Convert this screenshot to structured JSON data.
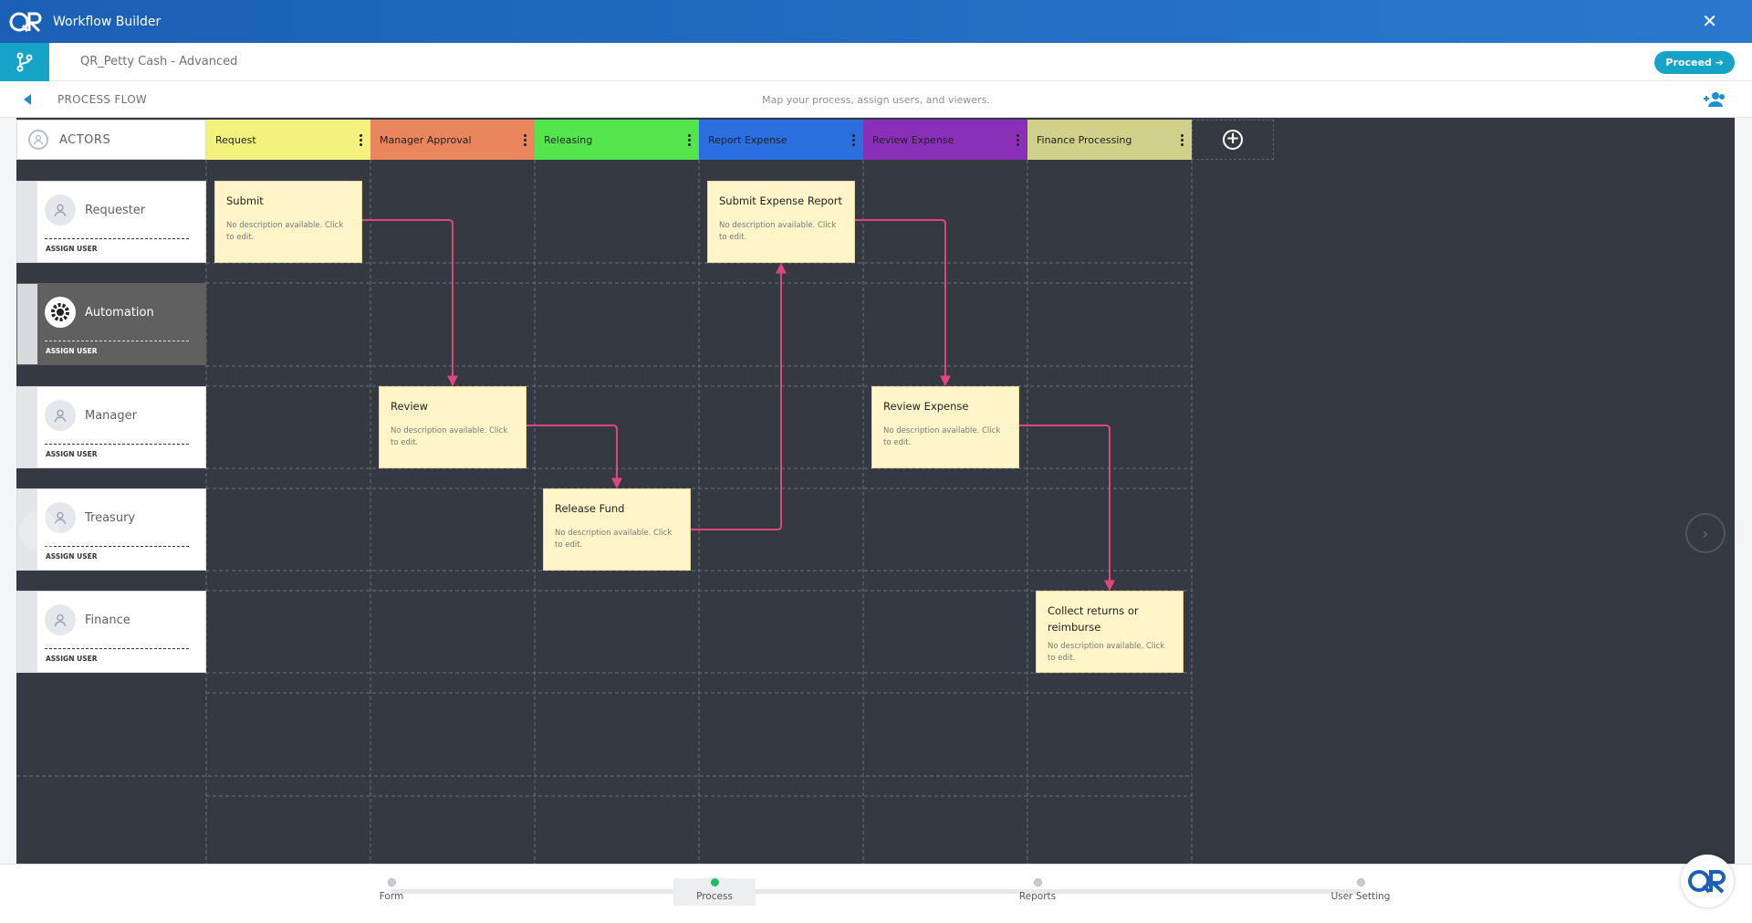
{
  "app": {
    "title": "Workflow Builder",
    "close_icon": "close-icon",
    "logo_icon": "qr-logo-icon"
  },
  "workflow": {
    "name": "QR_Petty Cash - Advanced",
    "proceed_label": "Proceed"
  },
  "flow_bar": {
    "label": "PROCESS FLOW",
    "hint": "Map your process, assign users, and viewers."
  },
  "board": {
    "actors_label": "ACTORS",
    "stages": [
      {
        "label": "Request",
        "color": "#f3f27e"
      },
      {
        "label": "Manager Approval",
        "color": "#ea865d"
      },
      {
        "label": "Releasing",
        "color": "#52e64c"
      },
      {
        "label": "Report Expense",
        "color": "#2a6ee0"
      },
      {
        "label": "Review Expense",
        "color": "#8a2fb7"
      },
      {
        "label": "Finance Processing",
        "color": "#d0d08b"
      }
    ],
    "actors": [
      {
        "name": "Requester",
        "assign": "ASSIGN USER"
      },
      {
        "name": "Automation",
        "assign": "ASSIGN USER"
      },
      {
        "name": "Manager",
        "assign": "ASSIGN USER"
      },
      {
        "name": "Treasury",
        "assign": "ASSIGN USER"
      },
      {
        "name": "Finance",
        "assign": "ASSIGN USER"
      }
    ],
    "tasks": [
      {
        "title": "Submit",
        "desc": "No description available. Click to edit."
      },
      {
        "title": "Submit Expense Report",
        "desc": "No description available. Click to edit."
      },
      {
        "title": "Review",
        "desc": "No description available. Click to edit."
      },
      {
        "title": "Review Expense",
        "desc": "No description available. Click to edit."
      },
      {
        "title": "Release Fund",
        "desc": "No description available. Click to edit."
      },
      {
        "title": "Collect returns or reimburse",
        "desc": "No description available. Click to edit."
      }
    ],
    "connector_color": "#e0457b"
  },
  "stepper": {
    "steps": [
      "Form",
      "Process",
      "Reports",
      "User Setting"
    ],
    "active": "Process"
  }
}
